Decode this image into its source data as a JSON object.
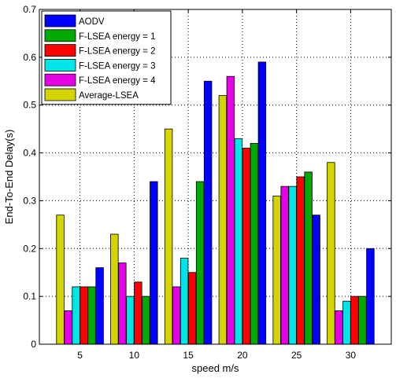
{
  "chart_data": {
    "type": "bar",
    "xlabel": "speed m/s",
    "ylabel": "End-To-End Delay(s)",
    "categories": [
      "5",
      "10",
      "15",
      "20",
      "25",
      "30"
    ],
    "ylim": [
      0,
      0.7
    ],
    "yticks": [
      "0",
      "0.1",
      "0.2",
      "0.3",
      "0.4",
      "0.5",
      "0.6",
      "0.7"
    ],
    "grid": "dotted",
    "legend_position": "top-left",
    "series": [
      {
        "name": "Average-LSEA",
        "color": "#d4d400",
        "values": [
          0.27,
          0.23,
          0.45,
          0.52,
          0.31,
          0.38
        ]
      },
      {
        "name": "F-LSEA energy = 4",
        "color": "#e600e6",
        "values": [
          0.07,
          0.17,
          0.12,
          0.56,
          0.33,
          0.07
        ]
      },
      {
        "name": "F-LSEA energy = 3",
        "color": "#00e6e6",
        "values": [
          0.12,
          0.1,
          0.18,
          0.43,
          0.33,
          0.09
        ]
      },
      {
        "name": "F-LSEA energy = 2",
        "color": "#ff0000",
        "values": [
          0.12,
          0.13,
          0.15,
          0.41,
          0.35,
          0.1
        ]
      },
      {
        "name": "F-LSEA energy = 1",
        "color": "#00aa00",
        "values": [
          0.12,
          0.1,
          0.34,
          0.42,
          0.36,
          0.1
        ]
      },
      {
        "name": "AODV",
        "color": "#0000ff",
        "values": [
          0.16,
          0.34,
          0.55,
          0.59,
          0.27,
          0.2
        ]
      }
    ],
    "legend_order": [
      "AODV",
      "F-LSEA energy = 1",
      "F-LSEA energy = 2",
      "F-LSEA energy = 3",
      "F-LSEA energy = 4",
      "Average-LSEA"
    ]
  }
}
